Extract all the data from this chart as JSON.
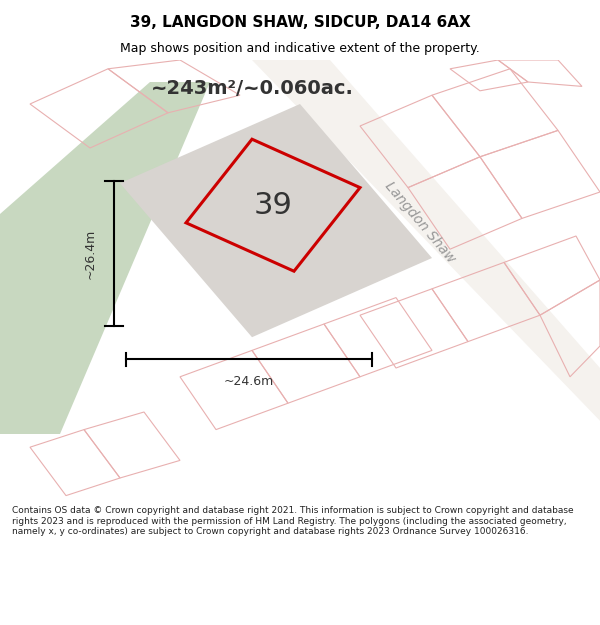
{
  "title": "39, LANGDON SHAW, SIDCUP, DA14 6AX",
  "subtitle": "Map shows position and indicative extent of the property.",
  "area_text": "~243m²/~0.060ac.",
  "dim_width": "~24.6m",
  "dim_height": "~26.4m",
  "number_label": "39",
  "street_label": "Langdon Shaw",
  "footer": "Contains OS data © Crown copyright and database right 2021. This information is subject to Crown copyright and database rights 2023 and is reproduced with the permission of HM Land Registry. The polygons (including the associated geometry, namely x, y co-ordinates) are subject to Crown copyright and database rights 2023 Ordnance Survey 100026316.",
  "bg_color": "#f0eeea",
  "map_bg": "#f0eeea",
  "green_area_color": "#c8d8c0",
  "gray_area_color": "#d8d8d8",
  "plot_fill": "#e8e4e0",
  "plot_edge": "#cc0000",
  "road_line_color": "#d0b0b0",
  "building_line_color": "#d0b0b0",
  "dim_line_color": "#000000",
  "title_color": "#000000",
  "footer_bg": "#ffffff",
  "header_bg": "#ffffff"
}
